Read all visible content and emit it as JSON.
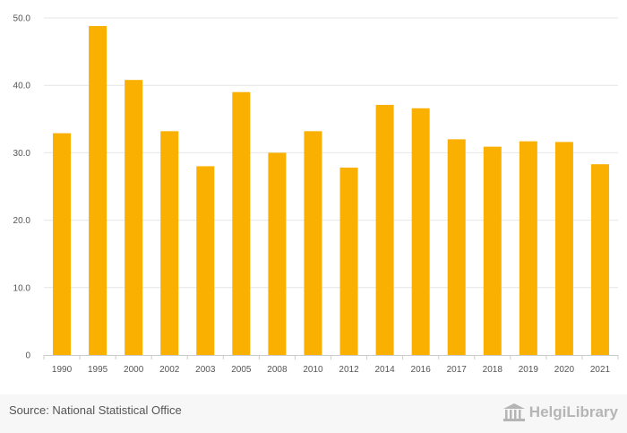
{
  "chart_data": {
    "type": "bar",
    "categories": [
      "1990",
      "1995",
      "2000",
      "2002",
      "2003",
      "2005",
      "2008",
      "2010",
      "2012",
      "2014",
      "2016",
      "2017",
      "2018",
      "2019",
      "2020",
      "2021"
    ],
    "values": [
      32.9,
      48.8,
      40.8,
      33.2,
      28.0,
      39.0,
      30.0,
      33.2,
      27.8,
      37.1,
      36.6,
      32.0,
      30.9,
      31.7,
      31.6,
      28.3
    ],
    "title": "",
    "xlabel": "",
    "ylabel": "",
    "ylim": [
      0,
      50
    ],
    "yticks": [
      "0",
      "10.0",
      "20.0",
      "30.0",
      "40.0",
      "50.0"
    ],
    "ytick_values": [
      0,
      10,
      20,
      30,
      40,
      50
    ],
    "grid": true,
    "bar_color": "#f9b000"
  },
  "footer": {
    "source": "Source: National Statistical Office",
    "logo_text": "HelgiLibrary"
  },
  "colors": {
    "grid": "#e6e6e6",
    "axis": "#cccccc",
    "text": "#555555",
    "logo": "#b5b5b5"
  }
}
